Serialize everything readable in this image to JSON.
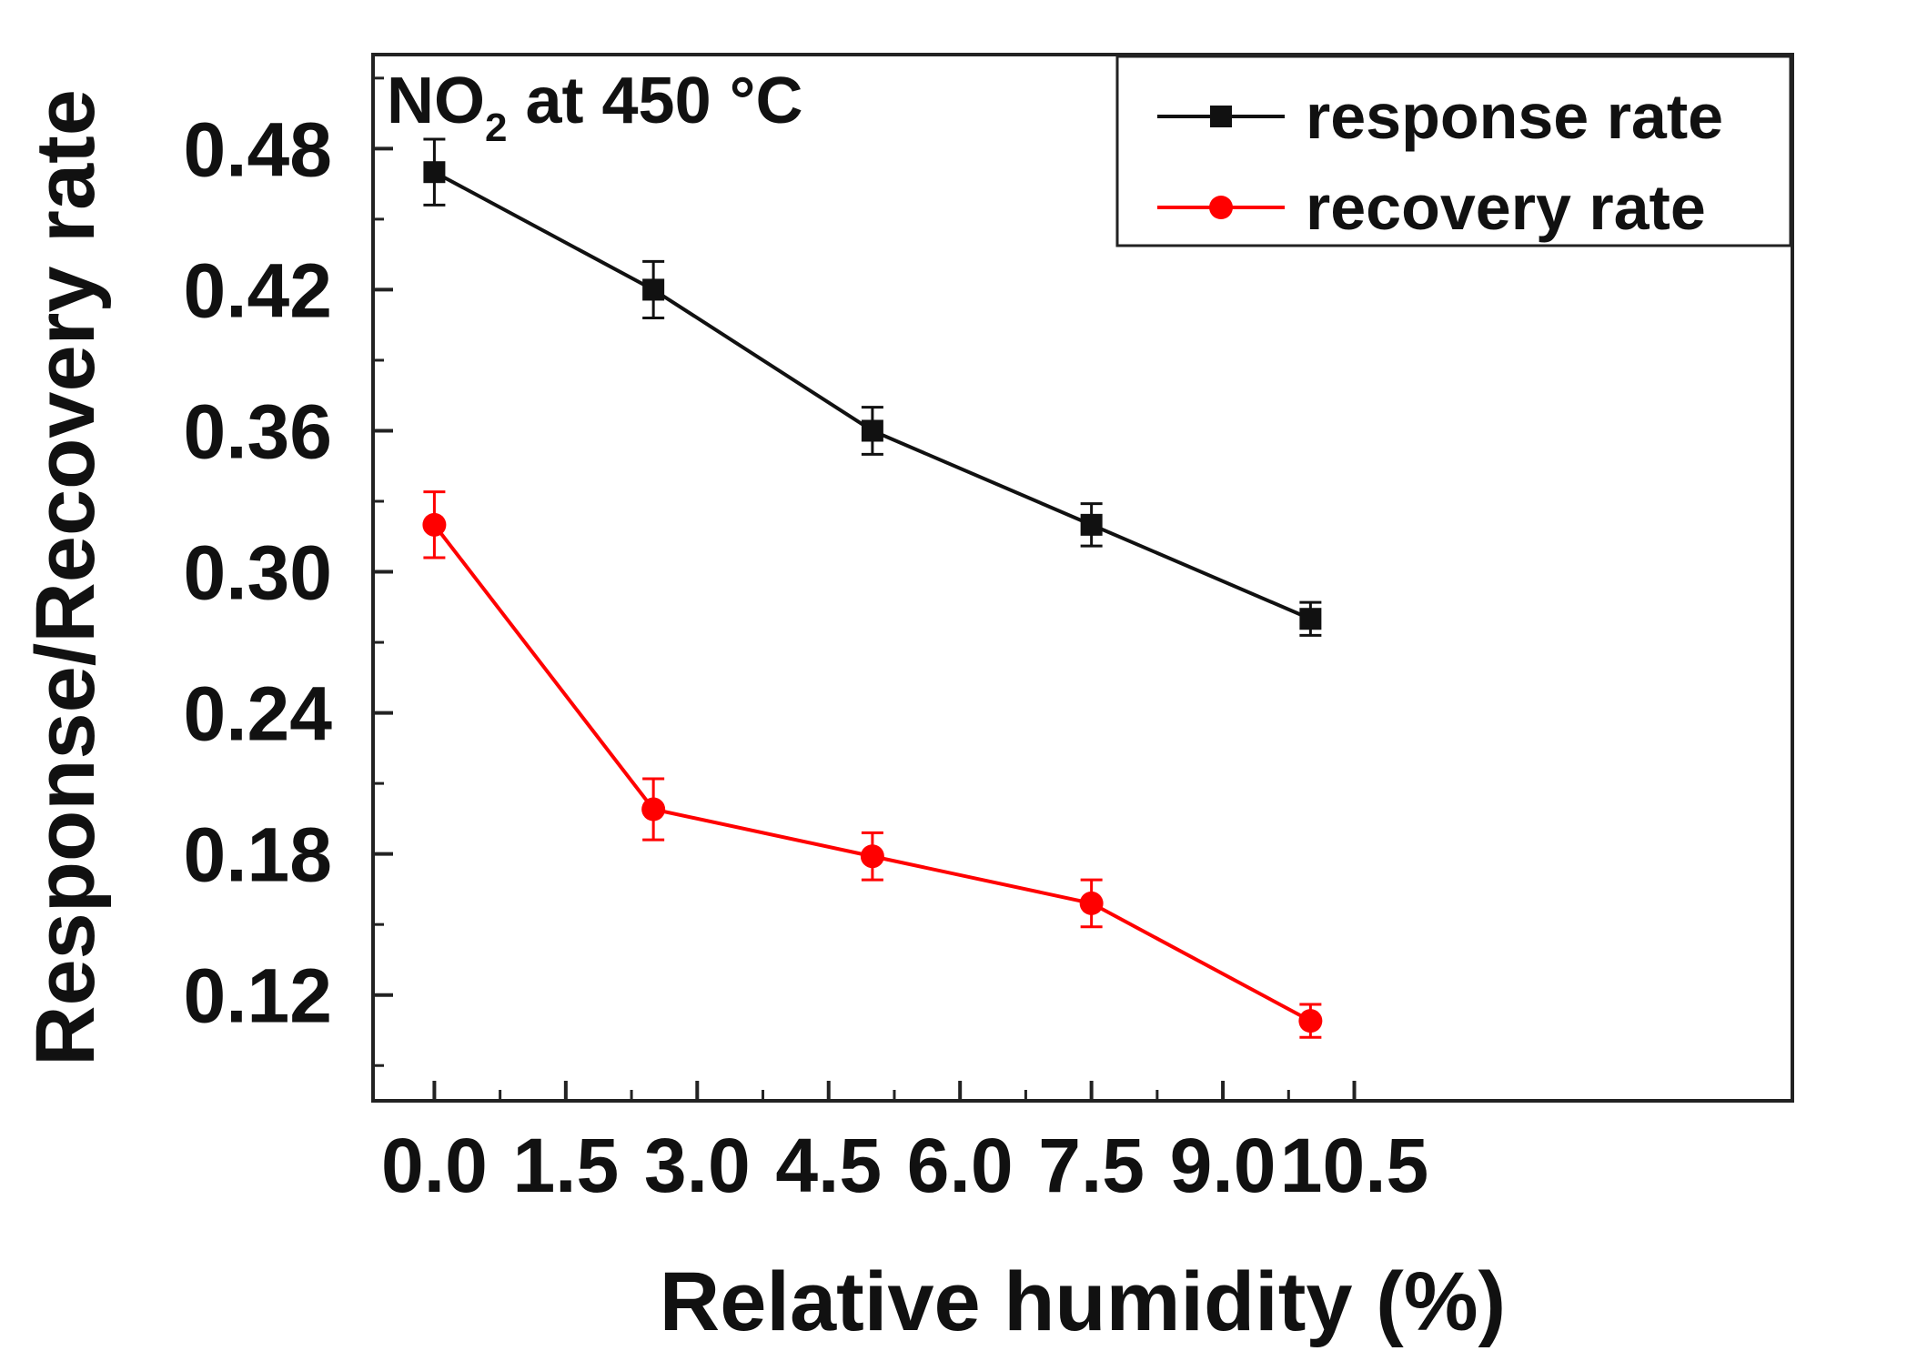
{
  "chart_data": {
    "type": "line",
    "title": "",
    "annotation": {
      "main": "NO",
      "sub": "2",
      "rest": " at 450 °C"
    },
    "xlabel": "Relative humidity (%)",
    "ylabel": "Response/Recovery rate",
    "xlim": [
      -0.7,
      15.5
    ],
    "ylim": [
      0.075,
      0.52
    ],
    "xticks": [
      0.0,
      1.5,
      3.0,
      4.5,
      6.0,
      7.5,
      9.0,
      10.5
    ],
    "xtick_labels": [
      "0.0",
      "1.5",
      "3.0",
      "4.5",
      "6.0",
      "7.5",
      "9.0",
      "10.5"
    ],
    "yticks": [
      0.12,
      0.18,
      0.24,
      0.3,
      0.36,
      0.42,
      0.48
    ],
    "ytick_labels": [
      "0.12",
      "0.18",
      "0.24",
      "0.30",
      "0.36",
      "0.42",
      "0.48"
    ],
    "x": [
      0,
      2.5,
      5,
      7.5,
      10
    ],
    "series": [
      {
        "name": "response rate",
        "color": "#111111",
        "marker": "square",
        "values": [
          0.47,
          0.42,
          0.36,
          0.32,
          0.28
        ],
        "errors": [
          0.014,
          0.012,
          0.01,
          0.009,
          0.007
        ]
      },
      {
        "name": "recovery rate",
        "color": "#ff0000",
        "marker": "circle",
        "values": [
          0.32,
          0.199,
          0.179,
          0.159,
          0.109
        ],
        "errors": [
          0.014,
          0.013,
          0.01,
          0.01,
          0.007
        ]
      }
    ],
    "legend_position": "top-right",
    "grid": false
  }
}
